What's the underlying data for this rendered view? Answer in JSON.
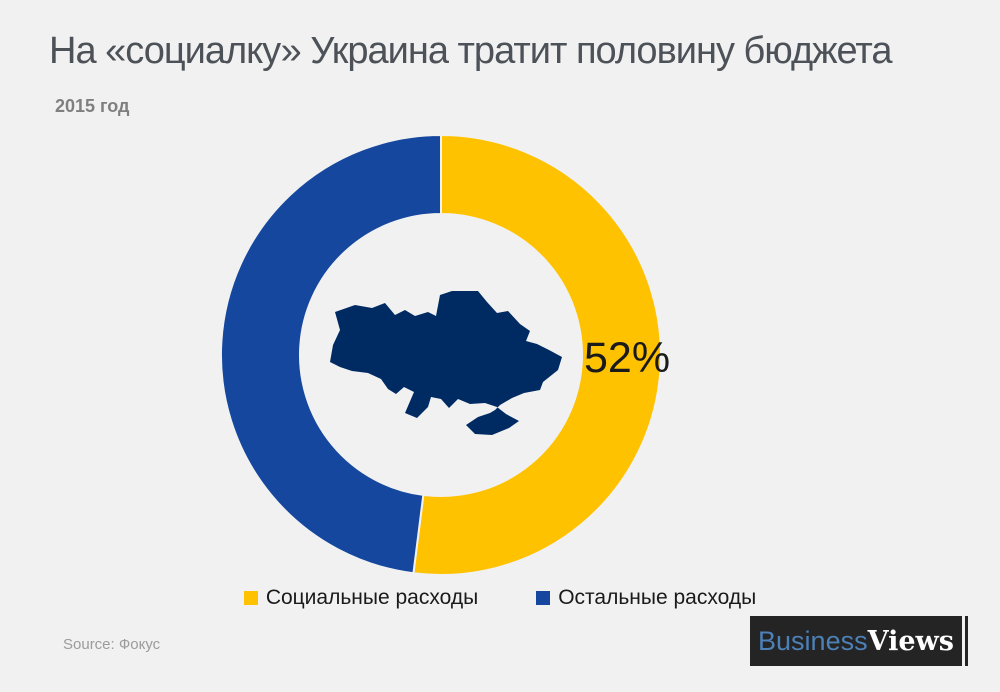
{
  "page": {
    "title": "На «социалку» Украина тратит половину бюджета",
    "subtitle": "2015 год"
  },
  "chart_data": {
    "type": "pie",
    "variant": "donut",
    "title": "На «социалку» Украина тратит половину бюджета",
    "subtitle": "2015 год",
    "categories": [
      "Социальные расходы",
      "Остальные расходы"
    ],
    "values": [
      52,
      48
    ],
    "unit": "%",
    "colors": [
      "#FFC200",
      "#15479E"
    ],
    "percent_label": "52%",
    "start_angle_deg": 0,
    "direction": "clockwise",
    "center_icon": "ukraine-map-silhouette",
    "center_icon_color": "#002B62",
    "background_color": "#F1F1F2",
    "legend_position": "bottom"
  },
  "legend": {
    "items": [
      {
        "label": "Социальные расходы",
        "color": "#FFC200"
      },
      {
        "label": "Остальные расходы",
        "color": "#15479E"
      }
    ]
  },
  "footer": {
    "source": "Source: Фокус",
    "logo": {
      "part1": "Business",
      "part2": "Views"
    }
  }
}
